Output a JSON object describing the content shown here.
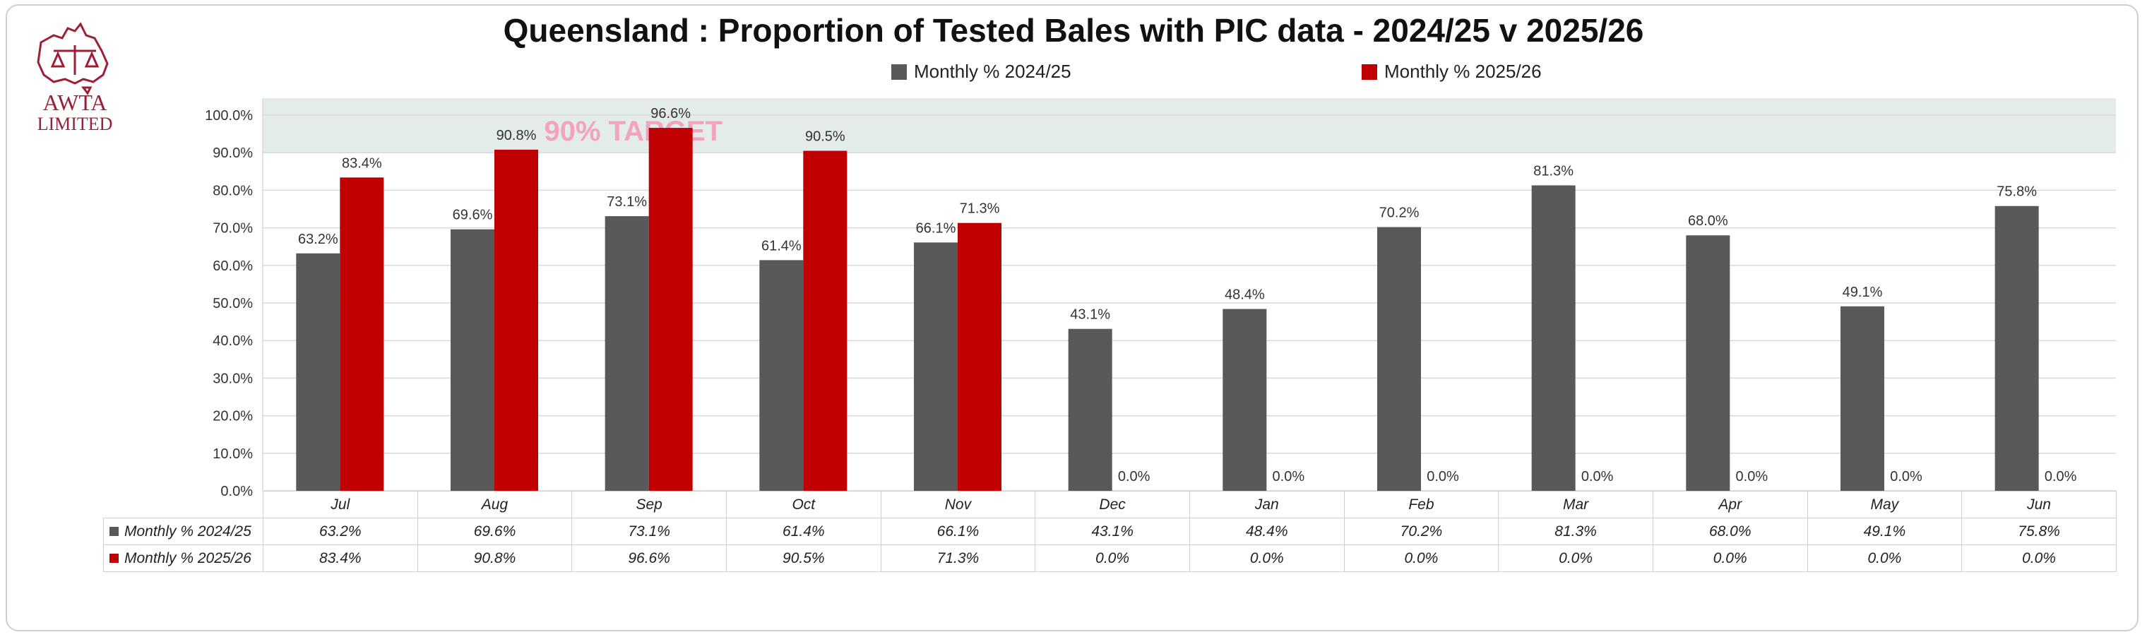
{
  "logo": {
    "line1": "AWTA",
    "line2": "LIMITED"
  },
  "colors": {
    "series_2024": "#595959",
    "series_2025": "#c00000",
    "target_band": "#e4ebeb",
    "target_text": "#f3a3bd",
    "grid": "#d9d9d9",
    "logo": "#9e1f35"
  },
  "chart_data": {
    "type": "bar",
    "title": "Queensland : Proportion of Tested Bales with PIC data - 2024/25 v 2025/26",
    "categories": [
      "Jul",
      "Aug",
      "Sep",
      "Oct",
      "Nov",
      "Dec",
      "Jan",
      "Feb",
      "Mar",
      "Apr",
      "May",
      "Jun"
    ],
    "series": [
      {
        "name": "Monthly % 2024/25",
        "values": [
          63.2,
          69.6,
          73.1,
          61.4,
          66.1,
          43.1,
          48.4,
          70.2,
          81.3,
          68.0,
          49.1,
          75.8
        ],
        "labels": [
          "63.2%",
          "69.6%",
          "73.1%",
          "61.4%",
          "66.1%",
          "43.1%",
          "48.4%",
          "70.2%",
          "81.3%",
          "68.0%",
          "49.1%",
          "75.8%"
        ]
      },
      {
        "name": "Monthly % 2025/26",
        "values": [
          83.4,
          90.8,
          96.6,
          90.5,
          71.3,
          0.0,
          0.0,
          0.0,
          0.0,
          0.0,
          0.0,
          0.0
        ],
        "labels": [
          "83.4%",
          "90.8%",
          "96.6%",
          "90.5%",
          "71.3%",
          "0.0%",
          "0.0%",
          "0.0%",
          "0.0%",
          "0.0%",
          "0.0%",
          "0.0%"
        ]
      }
    ],
    "ylim": [
      0,
      100
    ],
    "y_ticks": [
      "0.0%",
      "10.0%",
      "20.0%",
      "30.0%",
      "40.0%",
      "50.0%",
      "60.0%",
      "70.0%",
      "80.0%",
      "90.0%",
      "100.0%"
    ],
    "target": {
      "label": "90% TARGET",
      "from": 90,
      "to": 104
    },
    "grid": true,
    "legend_placement": "top"
  }
}
